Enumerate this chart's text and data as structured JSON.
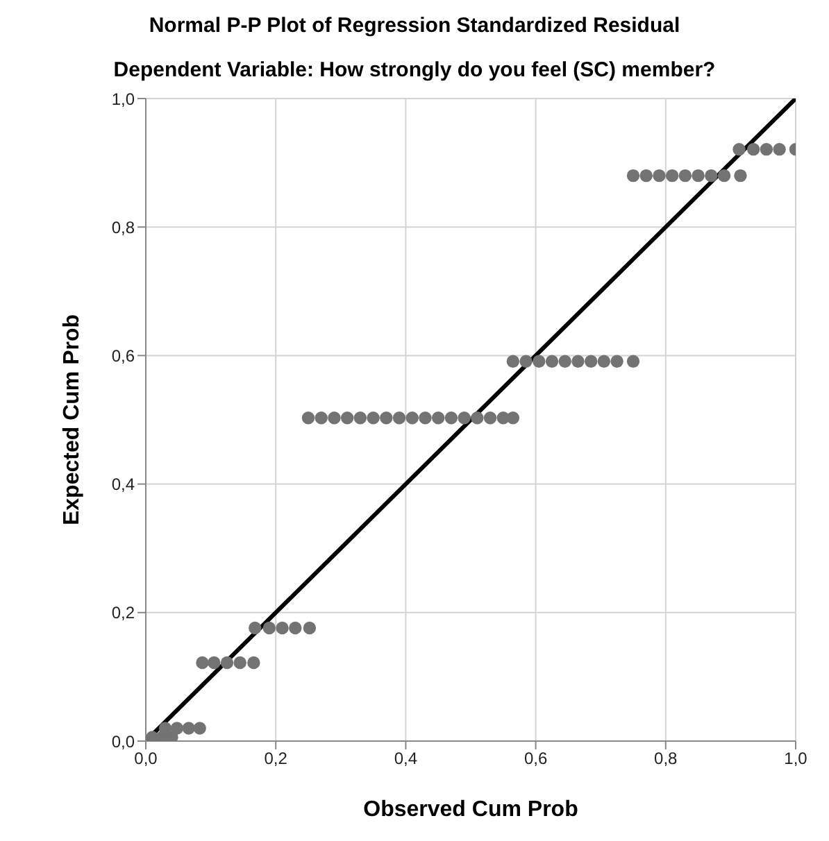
{
  "chart_data": {
    "type": "scatter",
    "title": "Normal P-P Plot of Regression Standardized Residual",
    "subtitle": "Dependent Variable: How strongly do you feel (SC) member?",
    "xlabel": "Observed Cum Prob",
    "ylabel": "Expected Cum Prob",
    "xlim": [
      0,
      1
    ],
    "ylim": [
      0,
      1
    ],
    "xticks": [
      {
        "value": 0,
        "label": "0,0"
      },
      {
        "value": 0.2,
        "label": "0,2"
      },
      {
        "value": 0.4,
        "label": "0,4"
      },
      {
        "value": 0.6,
        "label": "0,6"
      },
      {
        "value": 0.8,
        "label": "0,8"
      },
      {
        "value": 1,
        "label": "1,0"
      }
    ],
    "yticks": [
      {
        "value": 0,
        "label": "0,0"
      },
      {
        "value": 0.2,
        "label": "0,2"
      },
      {
        "value": 0.4,
        "label": "0,4"
      },
      {
        "value": 0.6,
        "label": "0,6"
      },
      {
        "value": 0.8,
        "label": "0,8"
      },
      {
        "value": 1,
        "label": "1,0"
      }
    ],
    "grid": true,
    "marker": "circle",
    "series": [
      {
        "color": "#737373",
        "x": [
          0.01,
          0.025,
          0.04,
          0.03,
          0.048,
          0.066,
          0.083,
          0.087,
          0.105,
          0.125,
          0.145,
          0.166,
          0.168,
          0.19,
          0.21,
          0.23,
          0.252,
          0.25,
          0.27,
          0.29,
          0.31,
          0.33,
          0.35,
          0.37,
          0.39,
          0.41,
          0.43,
          0.45,
          0.47,
          0.49,
          0.51,
          0.53,
          0.55,
          0.565,
          0.565,
          0.585,
          0.605,
          0.625,
          0.645,
          0.665,
          0.685,
          0.705,
          0.725,
          0.75,
          0.75,
          0.77,
          0.79,
          0.81,
          0.83,
          0.85,
          0.87,
          0.89,
          0.915,
          0.913,
          0.935,
          0.955,
          0.975,
          1.0
        ],
        "values": [
          0.006,
          0.006,
          0.006,
          0.02,
          0.02,
          0.02,
          0.02,
          0.122,
          0.122,
          0.122,
          0.122,
          0.122,
          0.176,
          0.176,
          0.176,
          0.176,
          0.176,
          0.503,
          0.503,
          0.503,
          0.503,
          0.503,
          0.503,
          0.503,
          0.503,
          0.503,
          0.503,
          0.503,
          0.503,
          0.503,
          0.503,
          0.503,
          0.503,
          0.503,
          0.591,
          0.591,
          0.591,
          0.591,
          0.591,
          0.591,
          0.591,
          0.591,
          0.591,
          0.591,
          0.88,
          0.88,
          0.88,
          0.88,
          0.88,
          0.88,
          0.88,
          0.88,
          0.88,
          0.921,
          0.921,
          0.921,
          0.921,
          0.921
        ]
      },
      {
        "type": "line",
        "color": "#000000",
        "marker": "none",
        "line_style": "solid",
        "x": [
          0,
          1
        ],
        "values": [
          0,
          1
        ]
      }
    ]
  }
}
